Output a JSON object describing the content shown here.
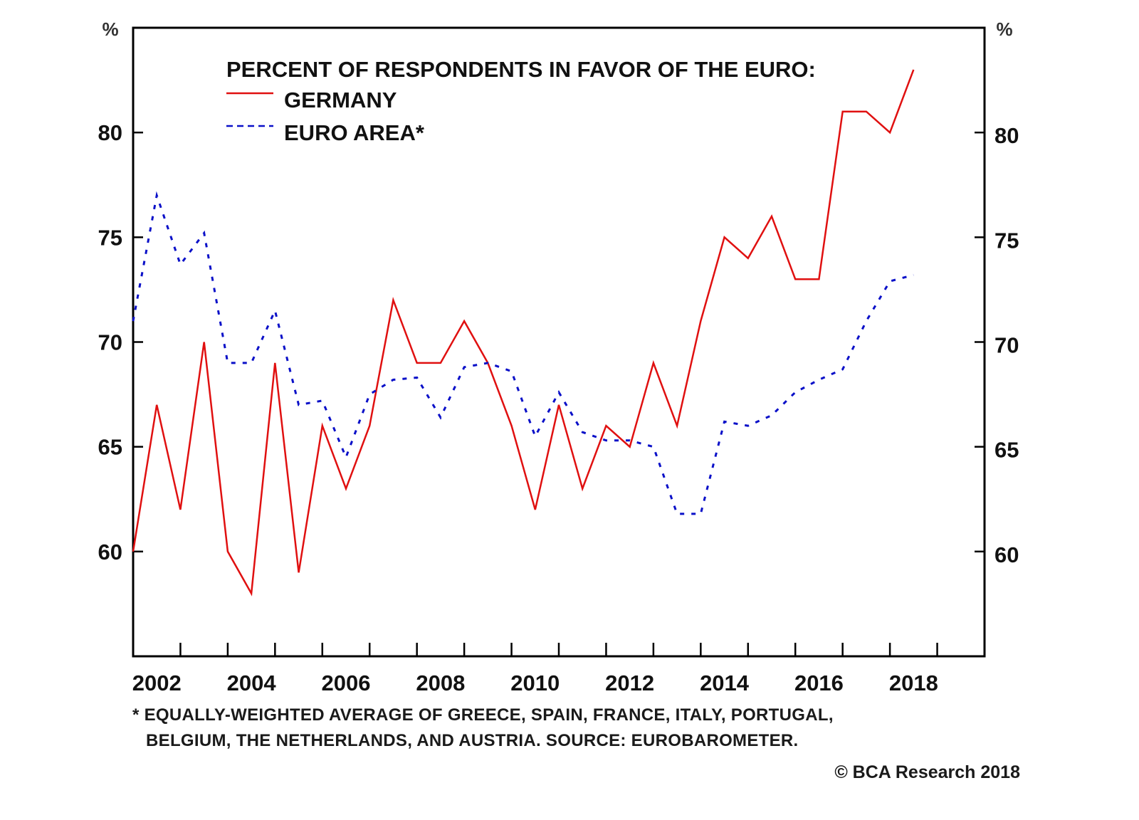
{
  "chart_data": {
    "type": "line",
    "title": "PERCENT OF RESPONDENTS IN FAVOR OF THE EURO:",
    "xlabel": "",
    "ylabel": "%",
    "y_unit_left": "%",
    "y_unit_right": "%",
    "ylim": [
      55,
      85
    ],
    "xlim": [
      2001.75,
      2019.75
    ],
    "y_ticks": [
      60,
      65,
      70,
      75,
      80
    ],
    "y_tick_labels": [
      "60",
      "65",
      "70",
      "75",
      "80"
    ],
    "x_tick_positions": [
      2002.75,
      2003.75,
      2004.75,
      2005.75,
      2006.75,
      2007.75,
      2008.75,
      2009.75,
      2010.75,
      2011.75,
      2012.75,
      2013.75,
      2014.75,
      2015.75,
      2016.75,
      2017.75,
      2018.75
    ],
    "x_tick_labels": [
      "2002",
      "2004",
      "2006",
      "2008",
      "2010",
      "2012",
      "2014",
      "2016",
      "2018"
    ],
    "x_tick_label_positions": [
      2002.25,
      2004.25,
      2006.25,
      2008.25,
      2010.25,
      2012.25,
      2014.25,
      2016.25,
      2018.25
    ],
    "grid": false,
    "legend_position": "top-left",
    "x": [
      2001.75,
      2002.25,
      2002.75,
      2003.25,
      2003.75,
      2004.25,
      2004.75,
      2005.25,
      2005.75,
      2006.25,
      2006.75,
      2007.25,
      2007.75,
      2008.25,
      2008.75,
      2009.25,
      2009.75,
      2010.25,
      2010.75,
      2011.25,
      2011.75,
      2012.25,
      2012.75,
      2013.25,
      2013.75,
      2014.25,
      2014.75,
      2015.25,
      2015.75,
      2016.25,
      2016.75,
      2017.25,
      2017.75,
      2018.25
    ],
    "series": [
      {
        "name": "GERMANY",
        "style": "solid",
        "color": "#e01010",
        "values": [
          60,
          67,
          62,
          70,
          60,
          58,
          69,
          59,
          66,
          63,
          66,
          72,
          69,
          69,
          71,
          69,
          66,
          62,
          67,
          63,
          66,
          65,
          69,
          66,
          71,
          75,
          74,
          76,
          73,
          73,
          81,
          81,
          80,
          83
        ]
      },
      {
        "name": "EURO AREA*",
        "style": "dashed",
        "color": "#0a10c8",
        "values": [
          71,
          77,
          73.7,
          75.2,
          69,
          69,
          71.5,
          67,
          67.2,
          64.5,
          67.5,
          68.2,
          68.3,
          66.4,
          68.8,
          69,
          68.6,
          65.5,
          67.6,
          65.7,
          65.3,
          65.3,
          65,
          61.8,
          61.8,
          66.2,
          66,
          66.5,
          67.6,
          68.2,
          68.7,
          71,
          72.9,
          73.2
        ]
      }
    ],
    "annotations": {
      "footnote_line1": "* EQUALLY-WEIGHTED AVERAGE OF GREECE, SPAIN, FRANCE, ITALY, PORTUGAL,",
      "footnote_line2": "BELGIUM, THE NETHERLANDS, AND AUSTRIA. SOURCE: EUROBAROMETER.",
      "copyright": "© BCA Research 2018"
    }
  }
}
